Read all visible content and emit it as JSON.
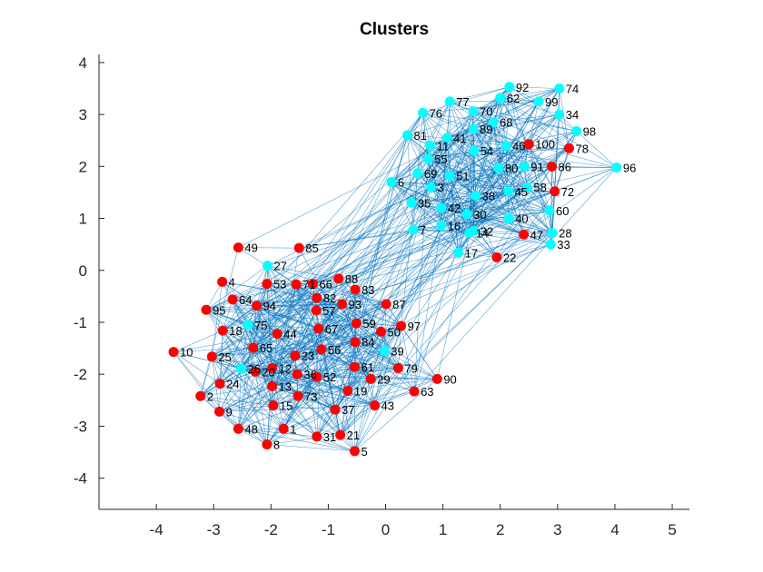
{
  "chart_data": {
    "type": "scatter",
    "title": "Clusters",
    "xlabel": "",
    "ylabel": "",
    "xlim": [
      -5,
      5.3
    ],
    "ylim": [
      -4.6,
      4.4
    ],
    "xticks": [
      "-4",
      "-3",
      "-2",
      "-1",
      "0",
      "1",
      "2",
      "3",
      "4",
      "5"
    ],
    "yticks": [
      "-4",
      "-3",
      "-2",
      "-1",
      "0",
      "1",
      "2",
      "3",
      "4"
    ],
    "grid": false,
    "edge_color": "#0072BD",
    "series": [
      {
        "color": "#FF0000",
        "points": [
          {
            "id": "1",
            "x": -1.78,
            "y": -3.05
          },
          {
            "id": "2",
            "x": -3.23,
            "y": -2.42
          },
          {
            "id": "4",
            "x": -2.85,
            "y": -0.22
          },
          {
            "id": "5",
            "x": -0.54,
            "y": -3.48
          },
          {
            "id": "8",
            "x": -2.07,
            "y": -3.35
          },
          {
            "id": "9",
            "x": -2.9,
            "y": -2.72
          },
          {
            "id": "10",
            "x": -3.7,
            "y": -1.57
          },
          {
            "id": "12",
            "x": -1.98,
            "y": -1.88
          },
          {
            "id": "13",
            "x": -1.98,
            "y": -2.23
          },
          {
            "id": "15",
            "x": -1.96,
            "y": -2.6
          },
          {
            "id": "18",
            "x": -2.84,
            "y": -1.16
          },
          {
            "id": "19",
            "x": -0.66,
            "y": -2.32
          },
          {
            "id": "20",
            "x": -2.27,
            "y": -1.95
          },
          {
            "id": "21",
            "x": -0.79,
            "y": -3.17
          },
          {
            "id": "22",
            "x": 1.94,
            "y": 0.25
          },
          {
            "id": "23",
            "x": -1.58,
            "y": -1.64
          },
          {
            "id": "24",
            "x": -2.89,
            "y": -2.18
          },
          {
            "id": "25",
            "x": -3.03,
            "y": -1.66
          },
          {
            "id": "29",
            "x": -0.26,
            "y": -2.09
          },
          {
            "id": "31",
            "x": -1.2,
            "y": -3.2
          },
          {
            "id": "36",
            "x": -1.54,
            "y": -2.0
          },
          {
            "id": "37",
            "x": -0.88,
            "y": -2.68
          },
          {
            "id": "43",
            "x": -0.19,
            "y": -2.6
          },
          {
            "id": "44",
            "x": -1.89,
            "y": -1.22
          },
          {
            "id": "47",
            "x": 2.41,
            "y": 0.69
          },
          {
            "id": "48",
            "x": -2.57,
            "y": -3.05
          },
          {
            "id": "49",
            "x": -2.57,
            "y": 0.44
          },
          {
            "id": "50",
            "x": -0.08,
            "y": -1.18
          },
          {
            "id": "52",
            "x": -1.2,
            "y": -2.05
          },
          {
            "id": "53",
            "x": -2.07,
            "y": -0.26
          },
          {
            "id": "56",
            "x": -1.12,
            "y": -1.52
          },
          {
            "id": "57",
            "x": -1.21,
            "y": -0.77
          },
          {
            "id": "59",
            "x": -0.51,
            "y": -1.02
          },
          {
            "id": "61",
            "x": -0.54,
            "y": -1.86
          },
          {
            "id": "63",
            "x": 0.5,
            "y": -2.33
          },
          {
            "id": "64",
            "x": -2.67,
            "y": -0.56
          },
          {
            "id": "65",
            "x": -2.31,
            "y": -1.49
          },
          {
            "id": "66",
            "x": -1.27,
            "y": -0.26
          },
          {
            "id": "67",
            "x": -1.17,
            "y": -1.12
          },
          {
            "id": "71",
            "x": -1.56,
            "y": -0.27
          },
          {
            "id": "72",
            "x": 2.95,
            "y": 1.52
          },
          {
            "id": "73",
            "x": -1.53,
            "y": -2.42
          },
          {
            "id": "78",
            "x": 3.2,
            "y": 2.35
          },
          {
            "id": "79",
            "x": 0.22,
            "y": -1.88
          },
          {
            "id": "82",
            "x": -1.2,
            "y": -0.53
          },
          {
            "id": "83",
            "x": -0.53,
            "y": -0.37
          },
          {
            "id": "84",
            "x": -0.53,
            "y": -1.38
          },
          {
            "id": "85",
            "x": -1.51,
            "y": 0.43
          },
          {
            "id": "86",
            "x": 2.9,
            "y": 2.0
          },
          {
            "id": "87",
            "x": 0.01,
            "y": -0.65
          },
          {
            "id": "88",
            "x": -0.82,
            "y": -0.16
          },
          {
            "id": "90",
            "x": 0.9,
            "y": -2.09
          },
          {
            "id": "93",
            "x": -0.76,
            "y": -0.65
          },
          {
            "id": "94",
            "x": -2.25,
            "y": -0.68
          },
          {
            "id": "95",
            "x": -3.13,
            "y": -0.76
          },
          {
            "id": "97",
            "x": 0.27,
            "y": -1.07
          },
          {
            "id": "100",
            "x": 2.5,
            "y": 2.43
          }
        ]
      },
      {
        "color": "#00FFFF",
        "points": [
          {
            "id": "3",
            "x": 0.79,
            "y": 1.6
          },
          {
            "id": "6",
            "x": 0.1,
            "y": 1.7
          },
          {
            "id": "7",
            "x": 0.48,
            "y": 0.78
          },
          {
            "id": "11",
            "x": 0.78,
            "y": 2.4
          },
          {
            "id": "14",
            "x": 1.46,
            "y": 0.72
          },
          {
            "id": "16",
            "x": 0.97,
            "y": 0.86
          },
          {
            "id": "17",
            "x": 1.27,
            "y": 0.34
          },
          {
            "id": "26",
            "x": -2.52,
            "y": -1.89
          },
          {
            "id": "27",
            "x": -2.06,
            "y": 0.09
          },
          {
            "id": "28",
            "x": 2.91,
            "y": 0.72
          },
          {
            "id": "30",
            "x": 1.42,
            "y": 1.08
          },
          {
            "id": "32",
            "x": 1.54,
            "y": 0.76
          },
          {
            "id": "33",
            "x": 2.88,
            "y": 0.5
          },
          {
            "id": "34",
            "x": 3.03,
            "y": 3.0
          },
          {
            "id": "35",
            "x": 0.45,
            "y": 1.3
          },
          {
            "id": "38",
            "x": 1.57,
            "y": 1.44
          },
          {
            "id": "39",
            "x": -0.02,
            "y": -1.55
          },
          {
            "id": "40",
            "x": 2.15,
            "y": 1.0
          },
          {
            "id": "41",
            "x": 1.07,
            "y": 2.55
          },
          {
            "id": "42",
            "x": 0.97,
            "y": 1.2
          },
          {
            "id": "45",
            "x": 2.14,
            "y": 1.52
          },
          {
            "id": "46",
            "x": 2.1,
            "y": 2.4
          },
          {
            "id": "51",
            "x": 1.12,
            "y": 1.82
          },
          {
            "id": "54",
            "x": 1.54,
            "y": 2.3
          },
          {
            "id": "55",
            "x": 0.74,
            "y": 2.15
          },
          {
            "id": "58",
            "x": 2.47,
            "y": 1.6
          },
          {
            "id": "60",
            "x": 2.86,
            "y": 1.15
          },
          {
            "id": "62",
            "x": 2.0,
            "y": 3.32
          },
          {
            "id": "68",
            "x": 1.88,
            "y": 2.85
          },
          {
            "id": "69",
            "x": 0.56,
            "y": 1.87
          },
          {
            "id": "70",
            "x": 1.53,
            "y": 3.06
          },
          {
            "id": "74",
            "x": 3.03,
            "y": 3.5
          },
          {
            "id": "75",
            "x": -2.4,
            "y": -1.05
          },
          {
            "id": "76",
            "x": 0.65,
            "y": 3.03
          },
          {
            "id": "77",
            "x": 1.12,
            "y": 3.25
          },
          {
            "id": "80",
            "x": 1.97,
            "y": 1.97
          },
          {
            "id": "81",
            "x": 0.38,
            "y": 2.6
          },
          {
            "id": "89",
            "x": 1.53,
            "y": 2.72
          },
          {
            "id": "91",
            "x": 2.42,
            "y": 2.0
          },
          {
            "id": "92",
            "x": 2.16,
            "y": 3.53
          },
          {
            "id": "96",
            "x": 4.03,
            "y": 1.98
          },
          {
            "id": "98",
            "x": 3.33,
            "y": 2.68
          },
          {
            "id": "99",
            "x": 2.67,
            "y": 3.25
          }
        ]
      }
    ]
  }
}
